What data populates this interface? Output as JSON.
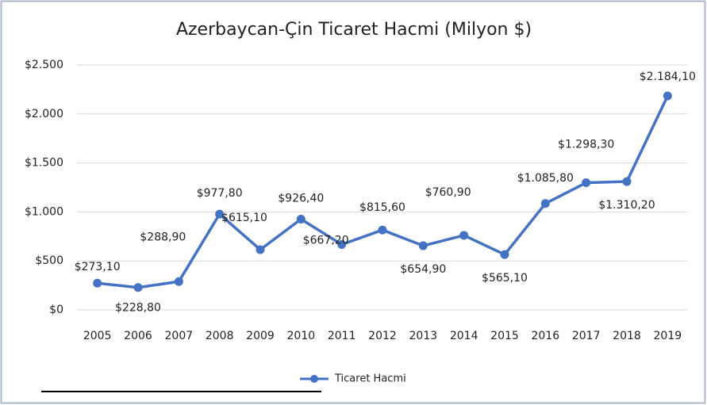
{
  "chart_data": {
    "type": "line",
    "title": "Azerbaycan-Çin Ticaret Hacmi (Milyon $)",
    "categories": [
      "2005",
      "2006",
      "2007",
      "2008",
      "2009",
      "2010",
      "2011",
      "2012",
      "2013",
      "2014",
      "2015",
      "2016",
      "2017",
      "2018",
      "2019"
    ],
    "series": [
      {
        "name": "Ticaret Hacmi",
        "color": "#4472c4",
        "values": [
          273.1,
          228.8,
          288.9,
          977.8,
          615.1,
          926.4,
          667.2,
          815.6,
          654.9,
          760.9,
          565.1,
          1085.8,
          1298.3,
          1310.2,
          2184.1
        ],
        "value_labels": [
          "$273,10",
          "$228,80",
          "$288,90",
          "$977,80",
          "$615,10",
          "$926,40",
          "$667,20",
          "$815,60",
          "$654,90",
          "$760,90",
          "$565,10",
          "$1.085,80",
          "$1.298,30",
          "$1.310,20",
          "$2.184,10"
        ]
      }
    ],
    "ylim": [
      0,
      2500
    ],
    "yticks": [
      {
        "value": 0,
        "label": "$0"
      },
      {
        "value": 500,
        "label": "$500"
      },
      {
        "value": 1000,
        "label": "$1.000"
      },
      {
        "value": 1500,
        "label": "$1.500"
      },
      {
        "value": 2000,
        "label": "$2.000"
      },
      {
        "value": 2500,
        "label": "$2.500"
      }
    ],
    "grid": true,
    "legend": "bottom"
  }
}
